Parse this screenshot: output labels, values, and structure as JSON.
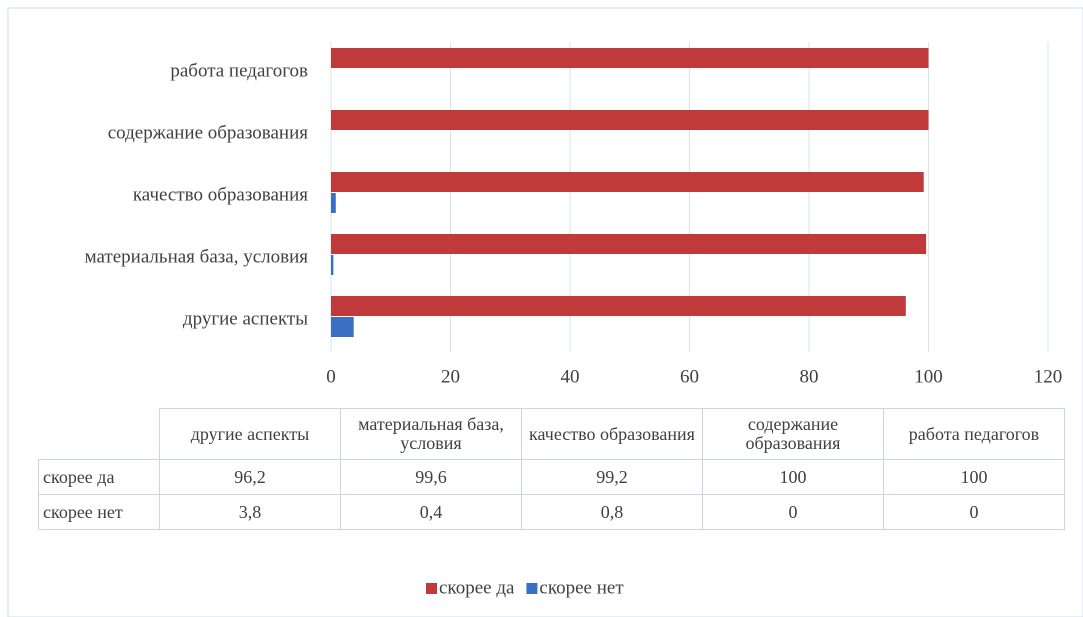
{
  "chart_data": {
    "type": "bar",
    "orientation": "horizontal",
    "categories": [
      "другие аспекты",
      "материальная база, условия",
      "качество образования",
      "содержание образования",
      "работа педагогов"
    ],
    "series": [
      {
        "name": "скорее да",
        "color": "#c0393b",
        "values": [
          96.2,
          99.6,
          99.2,
          100,
          100
        ],
        "value_labels": [
          "96,2",
          "99,6",
          "99,2",
          "100",
          "100"
        ]
      },
      {
        "name": "скорее нет",
        "color": "#3a6fc4",
        "values": [
          3.8,
          0.4,
          0.8,
          0,
          0
        ],
        "value_labels": [
          "3,8",
          "0,4",
          "0,8",
          "0",
          "0"
        ]
      }
    ],
    "xlim": [
      0,
      120
    ],
    "xticks": [
      0,
      20,
      40,
      60,
      80,
      100,
      120
    ],
    "grid": true,
    "legend": "bottom"
  }
}
